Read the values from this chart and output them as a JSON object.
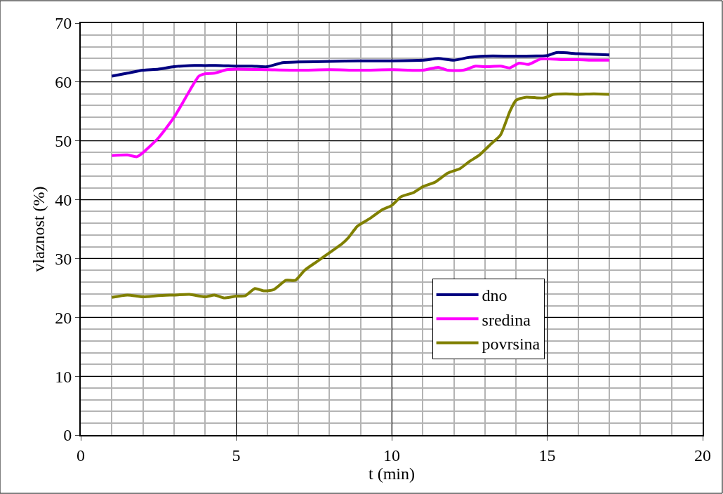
{
  "chart_data": {
    "type": "line",
    "xlabel": "t (min)",
    "ylabel": "vlaznost (%)",
    "xlim": [
      0,
      20
    ],
    "xticks": [
      0,
      5,
      10,
      15,
      20
    ],
    "ylim": [
      0,
      70
    ],
    "yticks": [
      0,
      10,
      20,
      30,
      40,
      50,
      60,
      70
    ],
    "grid": true,
    "legend": "bottom right",
    "marker": "none",
    "line_style": "solid",
    "series": [
      {
        "name": "dno",
        "color": "#000080",
        "x": [
          1,
          1.5,
          2,
          2.5,
          3,
          3.5,
          4,
          4.5,
          5,
          5.5,
          6,
          6.5,
          7,
          8,
          9,
          10,
          11,
          11.5,
          12,
          12.5,
          13,
          14,
          15,
          15.3,
          16,
          17
        ],
        "values": [
          61.0,
          61.5,
          62.0,
          62.2,
          62.6,
          62.8,
          62.8,
          62.8,
          62.7,
          62.7,
          62.6,
          63.3,
          63.4,
          63.5,
          63.6,
          63.6,
          63.7,
          64.0,
          63.7,
          64.2,
          64.4,
          64.4,
          64.5,
          65.0,
          64.8,
          64.6
        ]
      },
      {
        "name": "sredina",
        "color": "#ff00ff",
        "x": [
          1,
          1.5,
          1.8,
          2,
          2.5,
          3,
          3.5,
          3.8,
          4,
          4.3,
          4.7,
          5,
          6,
          7,
          8,
          9,
          10,
          11,
          11.5,
          11.8,
          12.3,
          12.7,
          13,
          13.5,
          13.8,
          14.1,
          14.4,
          14.8,
          15.5,
          16,
          16.5,
          17
        ],
        "values": [
          47.5,
          47.6,
          47.3,
          48.0,
          50.5,
          54.0,
          58.5,
          61.0,
          61.4,
          61.5,
          62.1,
          62.2,
          62.1,
          62.0,
          62.1,
          62.0,
          62.1,
          62.0,
          62.5,
          62.0,
          62.0,
          62.7,
          62.6,
          62.7,
          62.4,
          63.2,
          63.0,
          63.9,
          63.8,
          63.8,
          63.7,
          63.7
        ]
      },
      {
        "name": "povrsina",
        "color": "#808000",
        "x": [
          1,
          1.5,
          2,
          2.5,
          3,
          3.5,
          4,
          4.3,
          4.6,
          5,
          5.3,
          5.6,
          5.9,
          6.2,
          6.6,
          6.9,
          7.2,
          7.6,
          8,
          8.4,
          8.6,
          8.9,
          9.3,
          9.7,
          10.0,
          10.3,
          10.7,
          11.0,
          11.4,
          11.8,
          12.2,
          12.5,
          12.8,
          13.2,
          13.5,
          13.8,
          14.0,
          14.3,
          14.9,
          15.2,
          15.6,
          16,
          16.5,
          17
        ],
        "values": [
          23.4,
          23.8,
          23.5,
          23.7,
          23.8,
          23.9,
          23.5,
          23.8,
          23.3,
          23.6,
          23.7,
          24.9,
          24.5,
          24.7,
          26.3,
          26.3,
          28.0,
          29.5,
          31.0,
          32.5,
          33.5,
          35.5,
          36.8,
          38.3,
          39.0,
          40.5,
          41.2,
          42.2,
          43.0,
          44.5,
          45.3,
          46.5,
          47.5,
          49.5,
          51.0,
          55.0,
          56.9,
          57.4,
          57.3,
          57.9,
          58.0,
          57.9,
          58.0,
          57.9
        ]
      }
    ]
  }
}
